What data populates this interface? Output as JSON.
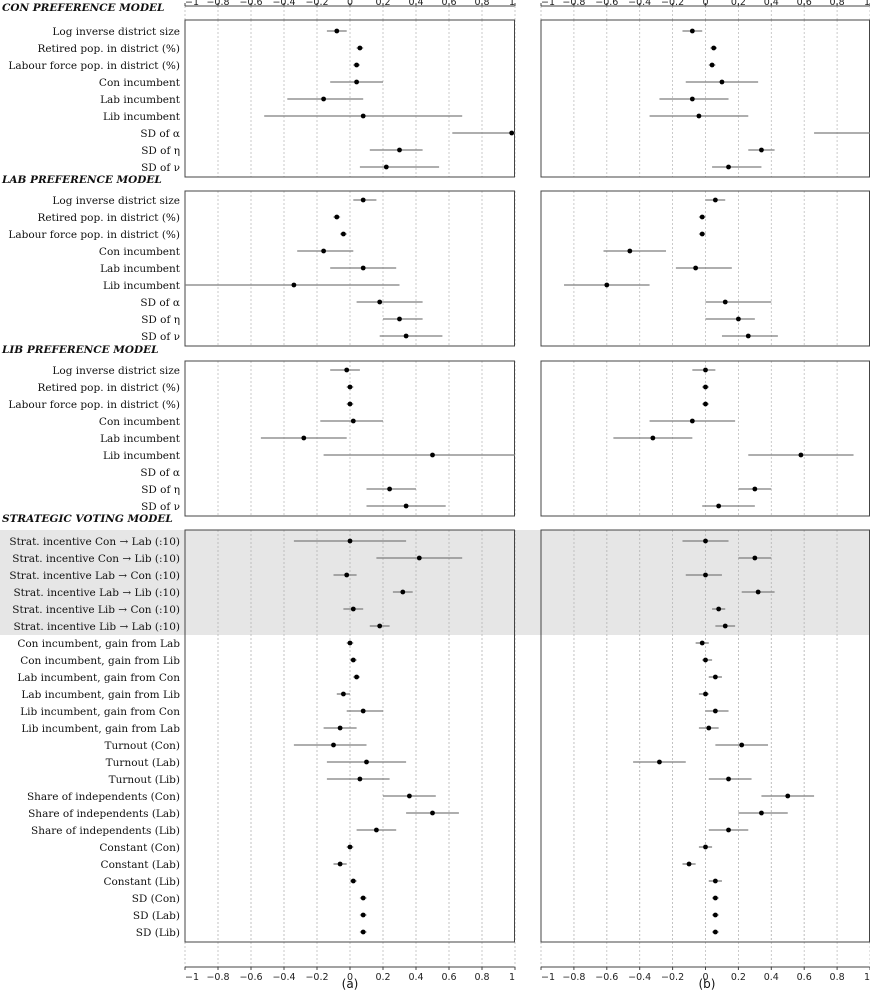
{
  "panel_labels": [
    "(a)",
    "(b)"
  ],
  "axis": {
    "xlim": [
      -1,
      1
    ],
    "ticks": [
      -1,
      -0.8,
      -0.6,
      -0.4,
      -0.2,
      0,
      0.2,
      0.4,
      0.6,
      0.8,
      1
    ],
    "tick_labels": [
      "−1",
      "−0.8",
      "−0.6",
      "−0.4",
      "−0.2",
      "0",
      "0.2",
      "0.4",
      "0.6",
      "0.8",
      "1"
    ]
  },
  "colors": {
    "point": "#000000",
    "interval": "#7d7d7d",
    "grid": "#bdbdbd",
    "shade": "#e6e6e6"
  },
  "chart_data": {
    "type": "scatter",
    "description_of_marks": "point estimates with horizontal interval bars, two panels",
    "sections": [
      {
        "title": "CON PREFERENCE MODEL",
        "rows": [
          {
            "label": "Log inverse district size",
            "a": [
              -0.08,
              -0.14,
              -0.02
            ],
            "b": [
              -0.08,
              -0.14,
              -0.02
            ]
          },
          {
            "label": "Retired pop. in district (%)",
            "a": [
              0.06,
              0.04,
              0.08
            ],
            "b": [
              0.05,
              0.03,
              0.07
            ]
          },
          {
            "label": "Labour force pop. in district (%)",
            "a": [
              0.04,
              0.02,
              0.06
            ],
            "b": [
              0.04,
              0.02,
              0.06
            ]
          },
          {
            "label": "Con incumbent",
            "a": [
              0.04,
              -0.12,
              0.2
            ],
            "b": [
              0.1,
              -0.12,
              0.32
            ]
          },
          {
            "label": "Lab incumbent",
            "a": [
              -0.16,
              -0.38,
              0.08
            ],
            "b": [
              -0.08,
              -0.28,
              0.14
            ]
          },
          {
            "label": "Lib incumbent",
            "a": [
              0.08,
              -0.52,
              0.68
            ],
            "b": [
              -0.04,
              -0.34,
              0.26
            ]
          },
          {
            "label": "SD of α",
            "a": [
              0.98,
              0.62,
              1.0
            ],
            "b": [
              null,
              0.66,
              1.0
            ]
          },
          {
            "label": "SD of η",
            "a": [
              0.3,
              0.12,
              0.44
            ],
            "b": [
              0.34,
              0.26,
              0.42
            ]
          },
          {
            "label": "SD of ν",
            "a": [
              0.22,
              0.06,
              0.54
            ],
            "b": [
              0.14,
              0.04,
              0.34
            ]
          }
        ]
      },
      {
        "title": "LAB PREFERENCE MODEL",
        "rows": [
          {
            "label": "Log inverse district size",
            "a": [
              0.08,
              0.02,
              0.16
            ],
            "b": [
              0.06,
              0.0,
              0.12
            ]
          },
          {
            "label": "Retired pop. in district (%)",
            "a": [
              -0.08,
              -0.1,
              -0.06
            ],
            "b": [
              -0.02,
              -0.04,
              0.0
            ]
          },
          {
            "label": "Labour force pop. in district (%)",
            "a": [
              -0.04,
              -0.06,
              -0.02
            ],
            "b": [
              -0.02,
              -0.04,
              0.0
            ]
          },
          {
            "label": "Con incumbent",
            "a": [
              -0.16,
              -0.32,
              0.02
            ],
            "b": [
              -0.46,
              -0.62,
              -0.24
            ]
          },
          {
            "label": "Lab incumbent",
            "a": [
              0.08,
              -0.12,
              0.28
            ],
            "b": [
              -0.06,
              -0.18,
              0.16
            ]
          },
          {
            "label": "Lib incumbent",
            "a": [
              -0.34,
              -1.0,
              0.3
            ],
            "b": [
              -0.6,
              -0.86,
              -0.34
            ]
          },
          {
            "label": "SD of α",
            "a": [
              0.18,
              0.04,
              0.44
            ],
            "b": [
              0.12,
              0.0,
              0.4
            ]
          },
          {
            "label": "SD of η",
            "a": [
              0.3,
              0.2,
              0.44
            ],
            "b": [
              0.2,
              0.0,
              0.3
            ]
          },
          {
            "label": "SD of ν",
            "a": [
              0.34,
              0.18,
              0.56
            ],
            "b": [
              0.26,
              0.1,
              0.44
            ]
          }
        ]
      },
      {
        "title": "LIB PREFERENCE MODEL",
        "rows": [
          {
            "label": "Log inverse district size",
            "a": [
              -0.02,
              -0.12,
              0.06
            ],
            "b": [
              0.0,
              -0.08,
              0.06
            ]
          },
          {
            "label": "Retired pop. in district (%)",
            "a": [
              0.0,
              -0.02,
              0.02
            ],
            "b": [
              0.0,
              -0.02,
              0.02
            ]
          },
          {
            "label": "Labour force pop. in district (%)",
            "a": [
              0.0,
              -0.02,
              0.02
            ],
            "b": [
              0.0,
              -0.02,
              0.02
            ]
          },
          {
            "label": "Con incumbent",
            "a": [
              0.02,
              -0.18,
              0.2
            ],
            "b": [
              -0.08,
              -0.34,
              0.18
            ]
          },
          {
            "label": "Lab incumbent",
            "a": [
              -0.28,
              -0.54,
              -0.02
            ],
            "b": [
              -0.32,
              -0.56,
              -0.08
            ]
          },
          {
            "label": "Lib incumbent",
            "a": [
              0.5,
              -0.16,
              1.0
            ],
            "b": [
              0.58,
              0.26,
              0.9
            ]
          },
          {
            "label": "SD of α",
            "a": [
              null,
              null,
              null
            ],
            "b": [
              null,
              null,
              null
            ]
          },
          {
            "label": "SD of η",
            "a": [
              0.24,
              0.1,
              0.4
            ],
            "b": [
              0.3,
              0.2,
              0.4
            ]
          },
          {
            "label": "SD of ν",
            "a": [
              0.34,
              0.1,
              0.58
            ],
            "b": [
              0.08,
              -0.02,
              0.3
            ]
          }
        ]
      },
      {
        "title": "STRATEGIC VOTING MODEL",
        "shaded_rows": 6,
        "rows": [
          {
            "label": "Strat. incentive Con → Lab (:10)",
            "a": [
              0.0,
              -0.34,
              0.34
            ],
            "b": [
              0.0,
              -0.14,
              0.14
            ]
          },
          {
            "label": "Strat. incentive Con → Lib (:10)",
            "a": [
              0.42,
              0.16,
              0.68
            ],
            "b": [
              0.3,
              0.2,
              0.4
            ]
          },
          {
            "label": "Strat. incentive Lab → Con (:10)",
            "a": [
              -0.02,
              -0.1,
              0.04
            ],
            "b": [
              0.0,
              -0.12,
              0.1
            ]
          },
          {
            "label": "Strat. incentive Lab → Lib (:10)",
            "a": [
              0.32,
              0.26,
              0.38
            ],
            "b": [
              0.32,
              0.22,
              0.42
            ]
          },
          {
            "label": "Strat. incentive Lib → Con (:10)",
            "a": [
              0.02,
              -0.04,
              0.08
            ],
            "b": [
              0.08,
              0.04,
              0.12
            ]
          },
          {
            "label": "Strat. incentive Lib → Lab (:10)",
            "a": [
              0.18,
              0.12,
              0.24
            ],
            "b": [
              0.12,
              0.06,
              0.18
            ]
          },
          {
            "label": "Con incumbent, gain from Lab",
            "a": [
              0.0,
              -0.02,
              0.02
            ],
            "b": [
              -0.02,
              -0.06,
              0.02
            ]
          },
          {
            "label": "Con incumbent, gain from Lib",
            "a": [
              0.02,
              0.0,
              0.04
            ],
            "b": [
              0.0,
              -0.02,
              0.04
            ]
          },
          {
            "label": "Lab incumbent, gain from Con",
            "a": [
              0.04,
              0.02,
              0.06
            ],
            "b": [
              0.06,
              0.02,
              0.1
            ]
          },
          {
            "label": "Lab incumbent, gain from Lib",
            "a": [
              -0.04,
              -0.08,
              0.0
            ],
            "b": [
              0.0,
              -0.04,
              0.02
            ]
          },
          {
            "label": "Lib incumbent, gain from Con",
            "a": [
              0.08,
              -0.02,
              0.2
            ],
            "b": [
              0.06,
              0.0,
              0.14
            ]
          },
          {
            "label": "Lib incumbent, gain from Lab",
            "a": [
              -0.06,
              -0.16,
              0.04
            ],
            "b": [
              0.02,
              -0.04,
              0.08
            ]
          },
          {
            "label": "Turnout (Con)",
            "a": [
              -0.1,
              -0.34,
              0.1
            ],
            "b": [
              0.22,
              0.06,
              0.38
            ]
          },
          {
            "label": "Turnout (Lab)",
            "a": [
              0.1,
              -0.14,
              0.34
            ],
            "b": [
              -0.28,
              -0.44,
              -0.12
            ]
          },
          {
            "label": "Turnout (Lib)",
            "a": [
              0.06,
              -0.14,
              0.24
            ],
            "b": [
              0.14,
              0.02,
              0.28
            ]
          },
          {
            "label": "Share of independents (Con)",
            "a": [
              0.36,
              0.2,
              0.52
            ],
            "b": [
              0.5,
              0.34,
              0.66
            ]
          },
          {
            "label": "Share of independents (Lab)",
            "a": [
              0.5,
              0.34,
              0.66
            ],
            "b": [
              0.34,
              0.2,
              0.5
            ]
          },
          {
            "label": "Share of independents (Lib)",
            "a": [
              0.16,
              0.04,
              0.28
            ],
            "b": [
              0.14,
              0.02,
              0.26
            ]
          },
          {
            "label": "Constant (Con)",
            "a": [
              0.0,
              -0.02,
              0.02
            ],
            "b": [
              0.0,
              -0.04,
              0.04
            ]
          },
          {
            "label": "Constant (Lab)",
            "a": [
              -0.06,
              -0.1,
              -0.02
            ],
            "b": [
              -0.1,
              -0.14,
              -0.06
            ]
          },
          {
            "label": "Constant (Lib)",
            "a": [
              0.02,
              0.0,
              0.04
            ],
            "b": [
              0.06,
              0.02,
              0.1
            ]
          },
          {
            "label": "SD (Con)",
            "a": [
              0.08,
              0.06,
              0.1
            ],
            "b": [
              0.06,
              0.04,
              0.08
            ]
          },
          {
            "label": "SD (Lab)",
            "a": [
              0.08,
              0.06,
              0.1
            ],
            "b": [
              0.06,
              0.04,
              0.08
            ]
          },
          {
            "label": "SD (Lib)",
            "a": [
              0.08,
              0.06,
              0.1
            ],
            "b": [
              0.06,
              0.04,
              0.08
            ]
          }
        ]
      }
    ]
  }
}
